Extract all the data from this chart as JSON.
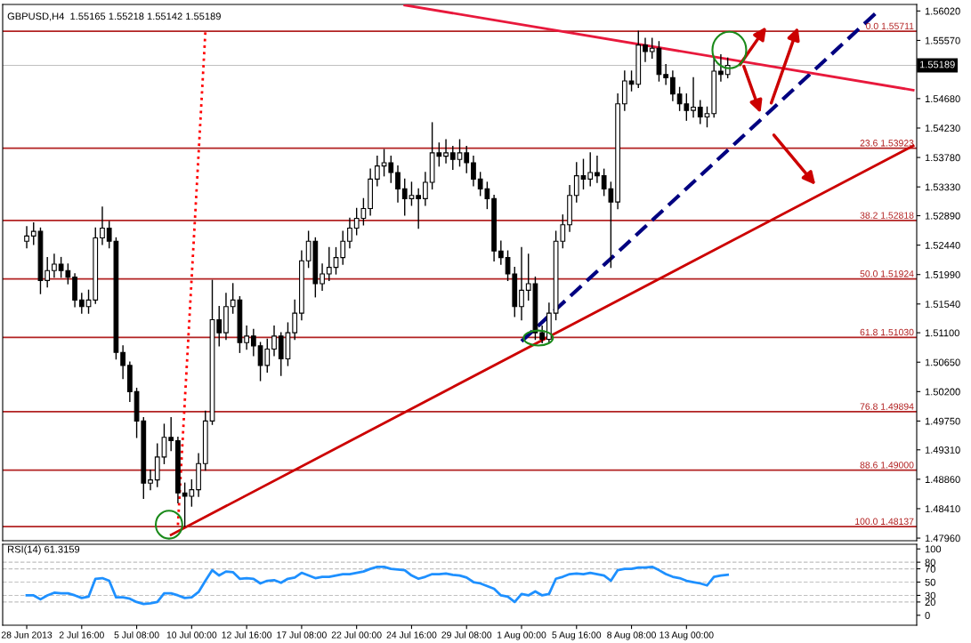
{
  "chart_data": [
    {
      "type": "candlestick",
      "title": "GBPUSD,H4  1.55165 1.55218 1.55142 1.55189",
      "categories": [
        null,
        null,
        null,
        null,
        null,
        null,
        null,
        null,
        null,
        null,
        null,
        null,
        null,
        null,
        null,
        null,
        null,
        null,
        null,
        null,
        null,
        null,
        null,
        null,
        null,
        null,
        null,
        null,
        null,
        null,
        null,
        null,
        null,
        null,
        null,
        null,
        null,
        null,
        null,
        null,
        null,
        null,
        null,
        null,
        null,
        null,
        null,
        null,
        null,
        null,
        null,
        null,
        null,
        null,
        null,
        null,
        null,
        null,
        null,
        null,
        null,
        null,
        null,
        null,
        null,
        null,
        null,
        null,
        null,
        null,
        null,
        null,
        null,
        null,
        null,
        null,
        null,
        null,
        null,
        null,
        null,
        null,
        null,
        null,
        null,
        null,
        null,
        null,
        null,
        null,
        null,
        null,
        null,
        null,
        null,
        null,
        null,
        null,
        null,
        null,
        null,
        null,
        null,
        null,
        null,
        null,
        null,
        null,
        null,
        null,
        null,
        null,
        null,
        null,
        null,
        null,
        null,
        null,
        null,
        null,
        null,
        null,
        null,
        null,
        null,
        null,
        null,
        null,
        null,
        null
      ],
      "ohlc": [
        [
          1.525,
          1.5272,
          1.524,
          1.5258
        ],
        [
          1.5258,
          1.5278,
          1.5245,
          1.5265
        ],
        [
          1.5265,
          1.527,
          1.517,
          1.519
        ],
        [
          1.519,
          1.5225,
          1.518,
          1.5205
        ],
        [
          1.5205,
          1.523,
          1.5195,
          1.5215
        ],
        [
          1.5215,
          1.5225,
          1.5195,
          1.5205
        ],
        [
          1.5205,
          1.5215,
          1.5185,
          1.5195
        ],
        [
          1.5195,
          1.52,
          1.515,
          1.516
        ],
        [
          1.516,
          1.517,
          1.514,
          1.515
        ],
        [
          1.515,
          1.5175,
          1.514,
          1.516
        ],
        [
          1.516,
          1.527,
          1.5155,
          1.5255
        ],
        [
          1.5255,
          1.5302,
          1.5245,
          1.527
        ],
        [
          1.527,
          1.528,
          1.524,
          1.525
        ],
        [
          1.525,
          1.5255,
          1.507,
          1.508
        ],
        [
          1.508,
          1.509,
          1.504,
          1.506
        ],
        [
          1.506,
          1.5065,
          1.5005,
          1.502
        ],
        [
          1.502,
          1.5025,
          1.495,
          1.4975
        ],
        [
          1.4975,
          1.498,
          1.4857,
          1.488
        ],
        [
          1.488,
          1.49,
          1.487,
          1.4885
        ],
        [
          1.4885,
          1.494,
          1.4875,
          1.492
        ],
        [
          1.492,
          1.497,
          1.491,
          1.495
        ],
        [
          1.495,
          1.498,
          1.493,
          1.4945
        ],
        [
          1.4945,
          1.495,
          1.485,
          1.4865
        ],
        [
          1.4865,
          1.488,
          1.4814,
          1.486
        ],
        [
          1.486,
          1.4885,
          1.4845,
          1.487
        ],
        [
          1.487,
          1.4925,
          1.486,
          1.491
        ],
        [
          1.491,
          1.499,
          1.49,
          1.4975
        ],
        [
          1.4975,
          1.519,
          1.497,
          1.513
        ],
        [
          1.513,
          1.515,
          1.509,
          1.511
        ],
        [
          1.511,
          1.517,
          1.51,
          1.515
        ],
        [
          1.515,
          1.5185,
          1.514,
          1.516
        ],
        [
          1.516,
          1.5165,
          1.508,
          1.5095
        ],
        [
          1.5095,
          1.512,
          1.5085,
          1.5105
        ],
        [
          1.5105,
          1.5115,
          1.5075,
          1.509
        ],
        [
          1.509,
          1.5095,
          1.5037,
          1.506
        ],
        [
          1.506,
          1.51,
          1.505,
          1.5085
        ],
        [
          1.5085,
          1.512,
          1.5075,
          1.5105
        ],
        [
          1.5105,
          1.511,
          1.5045,
          1.507
        ],
        [
          1.507,
          1.5125,
          1.506,
          1.511
        ],
        [
          1.511,
          1.516,
          1.51,
          1.514
        ],
        [
          1.514,
          1.5235,
          1.513,
          1.522
        ],
        [
          1.522,
          1.5265,
          1.521,
          1.525
        ],
        [
          1.525,
          1.5255,
          1.5165,
          1.5185
        ],
        [
          1.5185,
          1.5215,
          1.5175,
          1.52
        ],
        [
          1.52,
          1.524,
          1.519,
          1.521
        ],
        [
          1.521,
          1.524,
          1.52,
          1.5225
        ],
        [
          1.5225,
          1.5265,
          1.5215,
          1.525
        ],
        [
          1.525,
          1.5285,
          1.524,
          1.527
        ],
        [
          1.527,
          1.53,
          1.526,
          1.5285
        ],
        [
          1.5285,
          1.5315,
          1.5275,
          1.53
        ],
        [
          1.53,
          1.536,
          1.529,
          1.5345
        ],
        [
          1.5345,
          1.538,
          1.5335,
          1.5365
        ],
        [
          1.5365,
          1.539,
          1.535,
          1.537
        ],
        [
          1.537,
          1.538,
          1.534,
          1.5355
        ],
        [
          1.5355,
          1.5365,
          1.531,
          1.533
        ],
        [
          1.533,
          1.5345,
          1.529,
          1.5315
        ],
        [
          1.5315,
          1.534,
          1.5305,
          1.532
        ],
        [
          1.532,
          1.533,
          1.527,
          1.5315
        ],
        [
          1.5315,
          1.5355,
          1.5305,
          1.534
        ],
        [
          1.534,
          1.5431,
          1.533,
          1.5385
        ],
        [
          1.5385,
          1.54,
          1.5365,
          1.538
        ],
        [
          1.538,
          1.5405,
          1.537,
          1.5385
        ],
        [
          1.5385,
          1.5395,
          1.536,
          1.5375
        ],
        [
          1.5375,
          1.5405,
          1.5365,
          1.5385
        ],
        [
          1.5385,
          1.5395,
          1.5355,
          1.537
        ],
        [
          1.537,
          1.538,
          1.5335,
          1.5345
        ],
        [
          1.5345,
          1.5355,
          1.532,
          1.533
        ],
        [
          1.533,
          1.534,
          1.53,
          1.5315
        ],
        [
          1.5315,
          1.532,
          1.522,
          1.5235
        ],
        [
          1.5235,
          1.525,
          1.5215,
          1.5225
        ],
        [
          1.5225,
          1.5235,
          1.519,
          1.52
        ],
        [
          1.52,
          1.521,
          1.5135,
          1.515
        ],
        [
          1.515,
          1.524,
          1.513,
          1.5175
        ],
        [
          1.5175,
          1.523,
          1.516,
          1.5185
        ],
        [
          1.5185,
          1.5195,
          1.51,
          1.511
        ],
        [
          1.511,
          1.512,
          1.5095,
          1.51
        ],
        [
          1.51,
          1.5155,
          1.5095,
          1.514
        ],
        [
          1.514,
          1.5265,
          1.513,
          1.525
        ],
        [
          1.525,
          1.529,
          1.524,
          1.5275
        ],
        [
          1.5275,
          1.5335,
          1.5265,
          1.532
        ],
        [
          1.532,
          1.537,
          1.531,
          1.535
        ],
        [
          1.535,
          1.5375,
          1.533,
          1.5345
        ],
        [
          1.5345,
          1.5385,
          1.5335,
          1.5355
        ],
        [
          1.5355,
          1.538,
          1.534,
          1.535
        ],
        [
          1.535,
          1.536,
          1.532,
          1.533
        ],
        [
          1.533,
          1.534,
          1.521,
          1.531
        ],
        [
          1.531,
          1.5475,
          1.53,
          1.546
        ],
        [
          1.546,
          1.551,
          1.545,
          1.5495
        ],
        [
          1.5495,
          1.551,
          1.548,
          1.549
        ],
        [
          1.549,
          1.5571,
          1.5485,
          1.555
        ],
        [
          1.555,
          1.556,
          1.5525,
          1.554
        ],
        [
          1.554,
          1.556,
          1.553,
          1.5545
        ],
        [
          1.5545,
          1.5555,
          1.5495,
          1.5505
        ],
        [
          1.5505,
          1.552,
          1.549,
          1.55
        ],
        [
          1.55,
          1.551,
          1.5465,
          1.5475
        ],
        [
          1.5475,
          1.5485,
          1.545,
          1.546
        ],
        [
          1.546,
          1.5475,
          1.5435,
          1.545
        ],
        [
          1.545,
          1.55,
          1.544,
          1.5455
        ],
        [
          1.5455,
          1.5465,
          1.543,
          1.544
        ],
        [
          1.544,
          1.5455,
          1.5425,
          1.5445
        ],
        [
          1.5445,
          1.553,
          1.544,
          1.551
        ],
        [
          1.551,
          1.5535,
          1.5495,
          1.5505
        ],
        [
          1.5505,
          1.553,
          1.55,
          1.55189
        ],
        null,
        null,
        null,
        null,
        null,
        null,
        null,
        null,
        null,
        null,
        null,
        null,
        null,
        null,
        null,
        null,
        null,
        null,
        null,
        null,
        null,
        null,
        null,
        null,
        null,
        null,
        null
      ],
      "series": [
        {
          "type": "line",
          "color": "#cc0000",
          "line_style": "solid",
          "values": [
            null,
            null,
            null,
            null,
            null,
            null,
            null,
            null,
            null,
            null,
            null,
            null,
            null,
            null,
            null,
            null,
            null,
            null,
            null,
            null,
            null,
            1.4801,
            null,
            null,
            null,
            null,
            null,
            null,
            null,
            null,
            null,
            null,
            null,
            null,
            null,
            null,
            null,
            null,
            null,
            null,
            null,
            null,
            null,
            null,
            null,
            null,
            null,
            null,
            null,
            null,
            null,
            null,
            null,
            null,
            null,
            null,
            null,
            null,
            null,
            null,
            null,
            null,
            null,
            null,
            null,
            null,
            null,
            null,
            null,
            null,
            null,
            null,
            null,
            null,
            null,
            null,
            null,
            null,
            null,
            null,
            null,
            null,
            null,
            null,
            null,
            null,
            null,
            null,
            null,
            null,
            null,
            null,
            null,
            null,
            null,
            null,
            null,
            null,
            null,
            null,
            null,
            null,
            null,
            null,
            null,
            null,
            null,
            null,
            null,
            null,
            null,
            null,
            null,
            null,
            null,
            null,
            null,
            null,
            null,
            null,
            null,
            null,
            null,
            null,
            null,
            null,
            null,
            null,
            null,
            1.5396
          ]
        },
        {
          "type": "line",
          "color": "#000080",
          "line_style": "dashed",
          "values": [
            null,
            null,
            null,
            null,
            null,
            null,
            null,
            null,
            null,
            null,
            null,
            null,
            null,
            null,
            null,
            null,
            null,
            null,
            null,
            null,
            null,
            null,
            null,
            null,
            null,
            null,
            null,
            null,
            null,
            null,
            null,
            null,
            null,
            null,
            null,
            null,
            null,
            null,
            null,
            null,
            null,
            null,
            null,
            null,
            null,
            null,
            null,
            null,
            null,
            null,
            null,
            null,
            null,
            null,
            null,
            null,
            null,
            null,
            null,
            null,
            null,
            null,
            null,
            null,
            null,
            null,
            null,
            null,
            null,
            null,
            null,
            null,
            1.5097,
            null,
            null,
            null,
            null,
            null,
            null,
            null,
            null,
            null,
            null,
            null,
            null,
            null,
            null,
            null,
            null,
            null,
            null,
            null,
            null,
            null,
            null,
            null,
            null,
            null,
            null,
            null,
            null,
            null,
            null,
            null,
            null,
            null,
            null,
            null,
            null,
            null,
            null,
            null,
            null,
            null,
            null,
            null,
            null,
            null,
            null,
            null,
            null,
            null,
            null,
            null,
            1.5603,
            null,
            null,
            null,
            null,
            null
          ]
        },
        {
          "type": "line",
          "color": "#e8193c",
          "line_style": "solid",
          "values": [
            null,
            null,
            null,
            null,
            null,
            null,
            null,
            null,
            null,
            null,
            null,
            null,
            null,
            null,
            null,
            null,
            null,
            null,
            null,
            null,
            null,
            null,
            null,
            null,
            null,
            null,
            null,
            null,
            null,
            null,
            null,
            null,
            null,
            null,
            null,
            null,
            null,
            null,
            null,
            null,
            null,
            null,
            null,
            null,
            null,
            null,
            null,
            null,
            null,
            null,
            null,
            null,
            null,
            null,
            null,
            1.5611,
            null,
            null,
            null,
            null,
            null,
            null,
            null,
            null,
            null,
            null,
            null,
            null,
            null,
            null,
            null,
            null,
            null,
            null,
            null,
            null,
            null,
            null,
            null,
            null,
            null,
            null,
            null,
            null,
            null,
            null,
            null,
            null,
            null,
            null,
            null,
            null,
            null,
            null,
            null,
            null,
            null,
            null,
            null,
            null,
            null,
            null,
            null,
            null,
            null,
            null,
            null,
            null,
            null,
            null,
            null,
            null,
            null,
            null,
            null,
            null,
            null,
            null,
            null,
            null,
            null,
            null,
            null,
            null,
            null,
            null,
            null,
            null,
            null,
            1.5481
          ]
        },
        {
          "type": "line",
          "color": "#ff0000",
          "line_style": "dotted",
          "values": [
            null,
            null,
            null,
            null,
            null,
            null,
            null,
            null,
            null,
            null,
            null,
            null,
            null,
            null,
            null,
            null,
            null,
            null,
            null,
            null,
            null,
            null,
            1.4816,
            null,
            null,
            null,
            1.5571,
            null,
            null,
            null,
            null,
            null,
            null,
            null,
            null,
            null,
            null,
            null,
            null,
            null,
            null,
            null,
            null,
            null,
            null,
            null,
            null,
            null,
            null,
            null,
            null,
            null,
            null,
            null,
            null,
            null,
            null,
            null,
            null,
            null,
            null,
            null,
            null,
            null,
            null,
            null,
            null,
            null,
            null,
            null,
            null,
            null,
            null,
            null,
            null,
            null,
            null,
            null,
            null,
            null,
            null,
            null,
            null,
            null,
            null,
            null,
            null,
            null,
            null,
            null,
            null,
            null,
            null,
            null,
            null,
            null,
            null,
            null,
            null,
            null,
            null,
            null,
            null,
            null,
            null,
            null,
            null,
            null,
            null,
            null,
            null,
            null,
            null,
            null,
            null,
            null,
            null,
            null,
            null,
            null,
            null,
            null,
            null,
            null,
            null,
            null,
            null,
            null,
            null,
            null
          ]
        }
      ],
      "ylim": [
        1.4792,
        1.5612
      ],
      "yticks": [
        {
          "value": 1.5602,
          "label": "1.56020"
        },
        {
          "value": 1.5557,
          "label": "1.55570"
        },
        {
          "value": 1.5468,
          "label": "1.54680"
        },
        {
          "value": 1.5423,
          "label": "1.54230"
        },
        {
          "value": 1.5378,
          "label": "1.53780"
        },
        {
          "value": 1.5333,
          "label": "1.53330"
        },
        {
          "value": 1.5289,
          "label": "1.52890"
        },
        {
          "value": 1.5244,
          "label": "1.52440"
        },
        {
          "value": 1.5199,
          "label": "1.51990"
        },
        {
          "value": 1.5154,
          "label": "1.51540"
        },
        {
          "value": 1.511,
          "label": "1.51100"
        },
        {
          "value": 1.5065,
          "label": "1.50650"
        },
        {
          "value": 1.502,
          "label": "1.50200"
        },
        {
          "value": 1.4975,
          "label": "1.49750"
        },
        {
          "value": 1.4931,
          "label": "1.49310"
        },
        {
          "value": 1.4886,
          "label": "1.48860"
        },
        {
          "value": 1.4841,
          "label": "1.48410"
        },
        {
          "value": 1.4796,
          "label": "1.47960"
        }
      ],
      "ref_lines": [
        {
          "axis": "y",
          "value": 1.55711,
          "label": "0.0 1.55711",
          "color": "#b22222"
        },
        {
          "axis": "y",
          "value": 1.53923,
          "label": "23.6 1.53923",
          "color": "#b22222"
        },
        {
          "axis": "y",
          "value": 1.52818,
          "label": "38.2 1.52818",
          "color": "#b22222"
        },
        {
          "axis": "y",
          "value": 1.51924,
          "label": "50.0 1.51924",
          "color": "#b22222"
        },
        {
          "axis": "y",
          "value": 1.5103,
          "label": "61.8 1.51030",
          "color": "#b22222"
        },
        {
          "axis": "y",
          "value": 1.49894,
          "label": "76.8 1.49894",
          "color": "#b22222"
        },
        {
          "axis": "y",
          "value": 1.49,
          "label": "88.6 1.49000",
          "color": "#b22222"
        },
        {
          "axis": "y",
          "value": 1.48137,
          "label": "100.0 1.48137",
          "color": "#b22222"
        },
        {
          "axis": "y",
          "value": 1.55189,
          "color": "#c0c0c0"
        }
      ],
      "annotations": [
        "1.55189"
      ],
      "tick_labels": "y",
      "grid": false,
      "legend": false
    },
    {
      "type": "line",
      "title": "RSI(14) 61.3159",
      "categories": [
        "28 Jun 2013",
        null,
        null,
        null,
        null,
        null,
        null,
        null,
        "2 Jul 16:00",
        null,
        null,
        null,
        null,
        null,
        null,
        null,
        "5 Jul 08:00",
        null,
        null,
        null,
        null,
        null,
        null,
        null,
        "10 Jul 00:00",
        null,
        null,
        null,
        null,
        null,
        null,
        null,
        "12 Jul 16:00",
        null,
        null,
        null,
        null,
        null,
        null,
        null,
        "17 Jul 08:00",
        null,
        null,
        null,
        null,
        null,
        null,
        null,
        "22 Jul 00:00",
        null,
        null,
        null,
        null,
        null,
        null,
        null,
        "24 Jul 16:00",
        null,
        null,
        null,
        null,
        null,
        null,
        null,
        "29 Jul 08:00",
        null,
        null,
        null,
        null,
        null,
        null,
        null,
        "1 Aug 00:00",
        null,
        null,
        null,
        null,
        null,
        null,
        null,
        "5 Aug 16:00",
        null,
        null,
        null,
        null,
        null,
        null,
        null,
        "8 Aug 08:00",
        null,
        null,
        null,
        null,
        null,
        null,
        null,
        "13 Aug 00:00",
        null,
        null,
        null,
        null,
        null,
        null,
        null,
        null,
        null,
        null,
        null,
        null,
        null,
        null,
        null,
        null,
        null,
        null,
        null,
        null,
        null,
        null,
        null,
        null,
        null,
        null,
        null,
        null,
        null,
        null,
        null,
        null,
        null
      ],
      "series": [
        {
          "color": "#1e90ff",
          "values": [
            30,
            30,
            24,
            30,
            34,
            33,
            33,
            30,
            26,
            28,
            55,
            56,
            52,
            27,
            27,
            25,
            20,
            17,
            18,
            20,
            33,
            33,
            30,
            26,
            27,
            35,
            52,
            68,
            60,
            66,
            65,
            55,
            56,
            55,
            48,
            52,
            53,
            49,
            55,
            57,
            64,
            60,
            56,
            58,
            58,
            60,
            62,
            62,
            64,
            66,
            70,
            73,
            73,
            70,
            69,
            68,
            60,
            55,
            58,
            62,
            62,
            63,
            61,
            60,
            57,
            50,
            48,
            44,
            40,
            30,
            28,
            20,
            32,
            30,
            36,
            30,
            32,
            55,
            58,
            62,
            63,
            62,
            64,
            62,
            60,
            52,
            68,
            70,
            70,
            72,
            72,
            73,
            68,
            62,
            58,
            56,
            52,
            50,
            48,
            45,
            58,
            60,
            61,
            null,
            null,
            null,
            null,
            null,
            null,
            null,
            null,
            null,
            null,
            null,
            null,
            null,
            null,
            null,
            null,
            null,
            null,
            null,
            null,
            null,
            null,
            null,
            null,
            null,
            null,
            null
          ]
        }
      ],
      "ylim": [
        -15,
        107
      ],
      "yticks": [
        0,
        20,
        30,
        50,
        70,
        80,
        100
      ],
      "ref_lines": [
        {
          "axis": "y",
          "value": 20,
          "color": "#c0c0c0",
          "line_style": "dashed"
        },
        {
          "axis": "y",
          "value": 30,
          "color": "#c0c0c0",
          "line_style": "dashed"
        },
        {
          "axis": "y",
          "value": 50,
          "color": "#c0c0c0",
          "line_style": "dashed"
        },
        {
          "axis": "y",
          "value": 70,
          "color": "#c0c0c0",
          "line_style": "dashed"
        },
        {
          "axis": "y",
          "value": 80,
          "color": "#c0c0c0",
          "line_style": "dashed"
        }
      ],
      "grid": false,
      "legend": false
    }
  ]
}
